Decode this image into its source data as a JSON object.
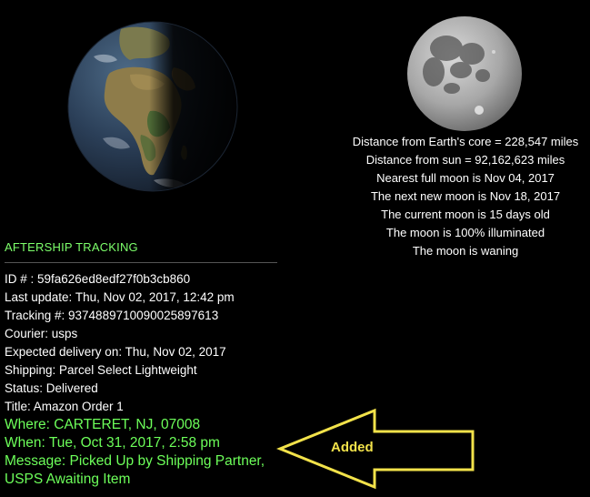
{
  "moon_info": [
    "Distance from Earth's core = 228,547 miles",
    "Distance from sun = 92,162,623 miles",
    "Nearest full moon is Nov 04, 2017",
    "The next new moon is Nov 18, 2017",
    "The current moon is 15 days old",
    "The moon is 100% illuminated",
    "The moon is waning"
  ],
  "tracking": {
    "heading": "AFTERSHIP TRACKING",
    "lines": [
      "ID # : 59fa626ed8edf27f0b3cb860",
      "Last update: Thu, Nov 02, 2017, 12:42 pm",
      "Tracking #: 9374889710090025897613",
      "Courier: usps",
      "Expected delivery on: Thu, Nov 02, 2017",
      "Shipping: Parcel Select Lightweight",
      "Status: Delivered",
      "Title: Amazon Order 1"
    ],
    "added_lines": [
      "Where: CARTERET, NJ, 07008",
      "When: Tue, Oct 31, 2017, 2:58 pm",
      "Message: Picked Up by Shipping Partner,",
      "USPS Awaiting Item"
    ]
  },
  "annotation": {
    "label": "Added",
    "color": "#f2e24a"
  },
  "icons": {
    "earth": "earth-globe-icon",
    "moon": "full-moon-icon"
  },
  "colors": {
    "heading": "#7dff6b",
    "added_text": "#6dff5a",
    "background": "#000000",
    "text": "#ffffff"
  }
}
